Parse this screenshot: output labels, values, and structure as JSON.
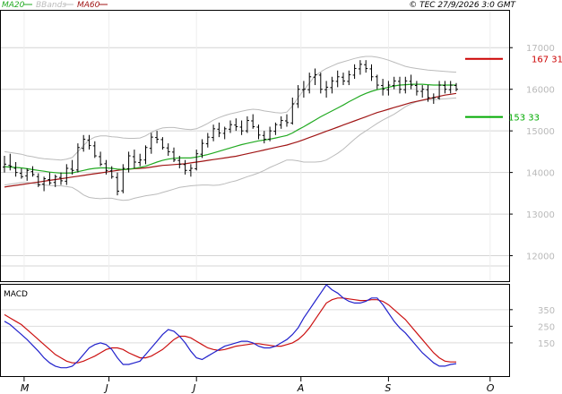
{
  "header": {
    "legend": [
      {
        "label": "MA20",
        "color": "#22aa22"
      },
      {
        "label": "BBands",
        "color": "#bbbbbb"
      },
      {
        "label": "MA60",
        "color": "#a01515"
      }
    ],
    "copyright": "© TEC 27/9/2026 3:0 GMT"
  },
  "chart_data": [
    {
      "type": "ohlc",
      "title": "",
      "ylim": [
        11000,
        17500
      ],
      "y_ticks": [
        "17000",
        "16000",
        "15000",
        "14000",
        "13000",
        "12000"
      ],
      "x_ticks": [
        "M",
        "J",
        "J",
        "A",
        "S",
        "O"
      ],
      "grid": true,
      "legend_placement": "top-left",
      "colors": {
        "price": "#000000",
        "ma20": "#22aa22",
        "ma60": "#a01515",
        "bbands": "#bbbbbb",
        "resistance": "#cc0000",
        "support": "#00aa00"
      },
      "price_ohlc": [
        [
          14130,
          14400,
          14000,
          14200
        ],
        [
          14170,
          14450,
          14050,
          14150
        ],
        [
          14100,
          14250,
          13900,
          14000
        ],
        [
          13980,
          14100,
          13850,
          13900
        ],
        [
          13920,
          14100,
          13800,
          14050
        ],
        [
          14020,
          14150,
          13900,
          13950
        ],
        [
          13900,
          13980,
          13650,
          13700
        ],
        [
          13720,
          13900,
          13550,
          13850
        ],
        [
          13830,
          14000,
          13700,
          13750
        ],
        [
          13760,
          13950,
          13650,
          13900
        ],
        [
          13880,
          14000,
          13700,
          13800
        ],
        [
          13790,
          14200,
          13700,
          14100
        ],
        [
          14080,
          14300,
          13950,
          14050
        ],
        [
          14060,
          14700,
          14000,
          14600
        ],
        [
          14580,
          14900,
          14500,
          14800
        ],
        [
          14780,
          14900,
          14550,
          14650
        ],
        [
          14640,
          14750,
          14350,
          14400
        ],
        [
          14380,
          14500,
          14150,
          14200
        ],
        [
          14210,
          14300,
          13950,
          14050
        ],
        [
          14040,
          14150,
          13850,
          13900
        ],
        [
          13880,
          14000,
          13450,
          13550
        ],
        [
          13560,
          14200,
          13500,
          14100
        ],
        [
          14090,
          14500,
          14000,
          14400
        ],
        [
          14380,
          14550,
          14100,
          14250
        ],
        [
          14240,
          14450,
          14150,
          14300
        ],
        [
          14300,
          14650,
          14200,
          14600
        ],
        [
          14580,
          14950,
          14450,
          14850
        ],
        [
          14840,
          15000,
          14700,
          14800
        ],
        [
          14790,
          14850,
          14550,
          14600
        ],
        [
          14590,
          14700,
          14400,
          14500
        ],
        [
          14490,
          14600,
          14250,
          14300
        ],
        [
          14290,
          14400,
          14100,
          14200
        ],
        [
          14190,
          14300,
          13950,
          14050
        ],
        [
          14050,
          14200,
          13900,
          14100
        ],
        [
          14090,
          14550,
          14050,
          14450
        ],
        [
          14440,
          14800,
          14350,
          14700
        ],
        [
          14690,
          14950,
          14600,
          14850
        ],
        [
          14840,
          15150,
          14750,
          15050
        ],
        [
          15040,
          15200,
          14850,
          14950
        ],
        [
          14940,
          15100,
          14800,
          15050
        ],
        [
          15040,
          15250,
          14950,
          15150
        ],
        [
          15140,
          15300,
          15000,
          15100
        ],
        [
          15090,
          15250,
          14900,
          15000
        ],
        [
          15000,
          15350,
          14950,
          15250
        ],
        [
          15240,
          15400,
          15050,
          15100
        ],
        [
          15090,
          15150,
          14800,
          14900
        ],
        [
          14890,
          15000,
          14700,
          14800
        ],
        [
          14800,
          15100,
          14750,
          15000
        ],
        [
          14990,
          15200,
          14900,
          15150
        ],
        [
          15140,
          15350,
          15050,
          15250
        ],
        [
          15240,
          15400,
          15100,
          15200
        ],
        [
          15190,
          15800,
          15150,
          15650
        ],
        [
          15650,
          16100,
          15550,
          16000
        ],
        [
          15990,
          16200,
          15800,
          16000
        ],
        [
          15990,
          16400,
          15900,
          16300
        ],
        [
          16290,
          16500,
          16100,
          16350
        ],
        [
          16340,
          16400,
          15900,
          16000
        ],
        [
          15990,
          16200,
          15800,
          16050
        ],
        [
          16040,
          16300,
          15900,
          16200
        ],
        [
          16190,
          16450,
          16050,
          16300
        ],
        [
          16290,
          16400,
          16100,
          16200
        ],
        [
          16190,
          16450,
          16100,
          16350
        ],
        [
          16340,
          16600,
          16250,
          16500
        ],
        [
          16490,
          16700,
          16350,
          16600
        ],
        [
          16590,
          16700,
          16400,
          16500
        ],
        [
          16490,
          16600,
          16200,
          16300
        ],
        [
          16300,
          16350,
          16000,
          16100
        ],
        [
          16090,
          16250,
          15850,
          16000
        ],
        [
          15990,
          16200,
          15850,
          16100
        ],
        [
          16090,
          16300,
          16000,
          16200
        ],
        [
          16190,
          16300,
          15900,
          16000
        ],
        [
          15990,
          16300,
          15900,
          16200
        ],
        [
          16190,
          16350,
          16000,
          16100
        ],
        [
          16090,
          16200,
          15850,
          15950
        ],
        [
          15950,
          16100,
          15800,
          16000
        ],
        [
          15990,
          16100,
          15700,
          15800
        ],
        [
          15790,
          15900,
          15650,
          15800
        ],
        [
          15790,
          16200,
          15750,
          16100
        ],
        [
          16090,
          16200,
          15900,
          16000
        ],
        [
          15990,
          16200,
          15900,
          16100
        ],
        [
          16090,
          16150,
          15950,
          16000
        ]
      ],
      "ma20": [
        14140,
        14130,
        14120,
        14110,
        14090,
        14070,
        14050,
        14030,
        14010,
        13995,
        13985,
        13985,
        13990,
        14020,
        14050,
        14080,
        14100,
        14110,
        14110,
        14100,
        14080,
        14070,
        14080,
        14100,
        14120,
        14150,
        14200,
        14250,
        14290,
        14320,
        14340,
        14350,
        14350,
        14350,
        14370,
        14400,
        14430,
        14470,
        14510,
        14550,
        14590,
        14630,
        14670,
        14700,
        14730,
        14760,
        14780,
        14800,
        14830,
        14860,
        14890,
        14950,
        15030,
        15100,
        15180,
        15260,
        15340,
        15410,
        15480,
        15550,
        15620,
        15700,
        15770,
        15840,
        15900,
        15950,
        15990,
        16020,
        16050,
        16080,
        16100,
        16110,
        16120,
        16120,
        16120,
        16110,
        16100,
        16100,
        16100,
        16100,
        16100
      ],
      "ma60": [
        13650,
        13670,
        13690,
        13710,
        13730,
        13750,
        13770,
        13790,
        13810,
        13830,
        13850,
        13870,
        13890,
        13910,
        13930,
        13950,
        13970,
        13990,
        14010,
        14030,
        14050,
        14070,
        14080,
        14090,
        14100,
        14110,
        14130,
        14150,
        14170,
        14180,
        14190,
        14200,
        14210,
        14230,
        14250,
        14270,
        14290,
        14310,
        14330,
        14350,
        14370,
        14390,
        14420,
        14450,
        14480,
        14510,
        14540,
        14570,
        14600,
        14630,
        14660,
        14700,
        14740,
        14790,
        14840,
        14890,
        14940,
        14990,
        15040,
        15090,
        15140,
        15190,
        15240,
        15290,
        15340,
        15390,
        15440,
        15480,
        15520,
        15560,
        15600,
        15640,
        15680,
        15710,
        15740,
        15770,
        15800,
        15830,
        15860,
        15880,
        15900
      ],
      "bband_upper": [
        14500,
        14480,
        14460,
        14440,
        14400,
        14380,
        14350,
        14330,
        14320,
        14310,
        14300,
        14320,
        14360,
        14500,
        14650,
        14780,
        14850,
        14880,
        14880,
        14860,
        14850,
        14830,
        14820,
        14820,
        14830,
        14880,
        14960,
        15030,
        15070,
        15080,
        15080,
        15060,
        15040,
        15030,
        15050,
        15110,
        15180,
        15260,
        15320,
        15370,
        15410,
        15440,
        15470,
        15500,
        15520,
        15510,
        15480,
        15460,
        15440,
        15430,
        15450,
        15600,
        15800,
        15980,
        16150,
        16320,
        16420,
        16500,
        16560,
        16620,
        16660,
        16700,
        16740,
        16770,
        16790,
        16790,
        16770,
        16740,
        16700,
        16650,
        16600,
        16550,
        16520,
        16500,
        16480,
        16460,
        16450,
        16440,
        16430,
        16420,
        16410
      ],
      "bband_lower": [
        13700,
        13720,
        13740,
        13760,
        13760,
        13740,
        13720,
        13700,
        13690,
        13680,
        13680,
        13660,
        13640,
        13560,
        13460,
        13400,
        13380,
        13370,
        13380,
        13380,
        13350,
        13330,
        13340,
        13380,
        13410,
        13440,
        13460,
        13480,
        13520,
        13560,
        13600,
        13640,
        13660,
        13680,
        13690,
        13700,
        13700,
        13690,
        13700,
        13730,
        13770,
        13800,
        13850,
        13900,
        13940,
        13990,
        14050,
        14120,
        14180,
        14240,
        14300,
        14300,
        14280,
        14250,
        14250,
        14250,
        14260,
        14300,
        14380,
        14460,
        14560,
        14680,
        14800,
        14910,
        15000,
        15090,
        15180,
        15260,
        15330,
        15400,
        15490,
        15580,
        15650,
        15700,
        15730,
        15750,
        15750,
        15760,
        15770,
        15780,
        15790
      ],
      "resistance": 16731,
      "resistance_label": "167 31",
      "support": 15333,
      "support_label": "153 33"
    },
    {
      "type": "line",
      "title": "MACD",
      "ylim": [
        -50,
        500
      ],
      "y_ticks": [
        "350",
        "250",
        "150"
      ],
      "x_ticks": [
        "M",
        "J",
        "J",
        "A",
        "S",
        "O"
      ],
      "grid": true,
      "legend_placement": "none",
      "colors": {
        "macd": "#2222cc",
        "signal": "#cc1111"
      },
      "macd": [
        280,
        260,
        230,
        200,
        170,
        135,
        100,
        60,
        30,
        10,
        0,
        0,
        10,
        40,
        80,
        120,
        140,
        150,
        140,
        110,
        60,
        20,
        20,
        30,
        40,
        80,
        120,
        160,
        200,
        230,
        220,
        190,
        150,
        100,
        60,
        50,
        70,
        90,
        110,
        130,
        140,
        150,
        160,
        160,
        150,
        130,
        120,
        120,
        130,
        150,
        170,
        200,
        240,
        300,
        350,
        400,
        450,
        500,
        470,
        450,
        420,
        400,
        390,
        390,
        400,
        420,
        420,
        380,
        330,
        280,
        240,
        210,
        170,
        130,
        90,
        60,
        30,
        10,
        10,
        20,
        25
      ],
      "signal": [
        320,
        300,
        280,
        260,
        230,
        200,
        170,
        140,
        110,
        80,
        60,
        40,
        30,
        30,
        40,
        55,
        70,
        90,
        110,
        120,
        120,
        110,
        90,
        75,
        60,
        60,
        70,
        90,
        110,
        140,
        170,
        190,
        190,
        180,
        160,
        140,
        120,
        110,
        105,
        110,
        120,
        130,
        135,
        140,
        145,
        145,
        140,
        135,
        130,
        130,
        140,
        150,
        170,
        200,
        240,
        290,
        340,
        390,
        410,
        420,
        420,
        415,
        410,
        405,
        405,
        410,
        410,
        400,
        380,
        350,
        320,
        290,
        250,
        210,
        170,
        130,
        90,
        60,
        40,
        35,
        35
      ]
    }
  ]
}
